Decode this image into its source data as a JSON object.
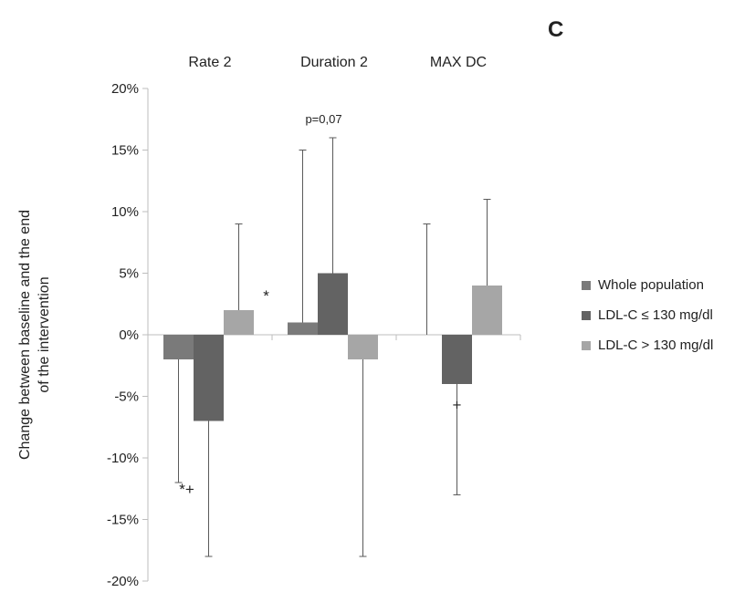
{
  "panel_label": "C",
  "chart_data": {
    "type": "bar",
    "title": "",
    "categories": [
      "Rate 2",
      "Duration 2",
      "MAX DC"
    ],
    "ylabel_lines": [
      "Change between baseline and the end",
      "of the intervention"
    ],
    "xlabel": "",
    "ylim": [
      -20,
      20
    ],
    "yticks": [
      20,
      15,
      10,
      5,
      0,
      -5,
      -10,
      -15,
      -20
    ],
    "ytick_labels": [
      "20%",
      "15%",
      "10%",
      "5%",
      "0%",
      "-5%",
      "-10%",
      "-15%",
      "-20%"
    ],
    "grid": false,
    "legend_position": "right",
    "series": [
      {
        "name": "Whole population",
        "color": "#7a7a7a",
        "values": [
          -2,
          1,
          0
        ],
        "error_end": [
          -12,
          15,
          9
        ]
      },
      {
        "name": "LDL-C ≤ 130 mg/dl",
        "color": "#636363",
        "values": [
          -7,
          5,
          -4
        ],
        "error_end": [
          -18,
          16,
          -13
        ]
      },
      {
        "name": "LDL-C > 130 mg/dl",
        "color": "#a6a6a6",
        "values": [
          2,
          -2,
          4
        ],
        "error_end": [
          9,
          -18,
          11
        ]
      }
    ],
    "annotations": [
      {
        "text": "*",
        "category": 0,
        "series": 2,
        "value": 3.5
      },
      {
        "text": "*+",
        "category": 0,
        "series": 1,
        "value": -12.5
      },
      {
        "text": "p=0,07",
        "category": 1,
        "series": 1,
        "value": 17.2
      },
      {
        "text": "+",
        "category": 2,
        "series": 1,
        "value": -5.5
      }
    ]
  }
}
